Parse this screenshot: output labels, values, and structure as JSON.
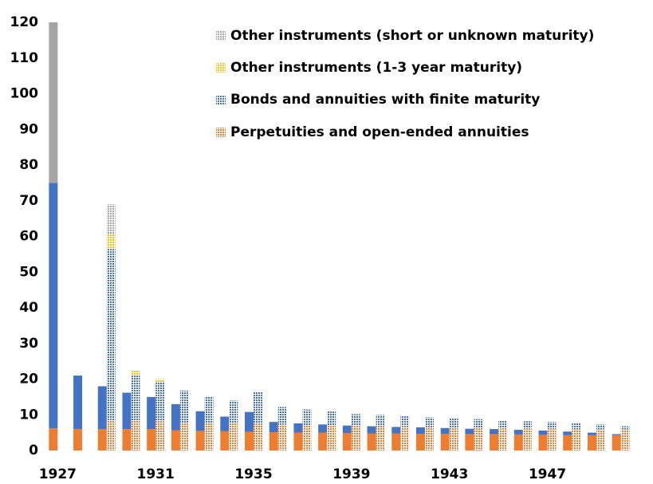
{
  "chart_data": {
    "type": "paired-stacked-bar",
    "categories": [
      "1927",
      null,
      null,
      null,
      "1931",
      null,
      null,
      null,
      "1935",
      null,
      null,
      null,
      "1939",
      null,
      null,
      null,
      "1943",
      null,
      null,
      null,
      "1947",
      null,
      null,
      null
    ],
    "series": [
      {
        "name": "Perpetuities and open-ended annuities",
        "color": "#ed7d31",
        "values": [
          6.2,
          6,
          6,
          6,
          6,
          5.7,
          5.5,
          5.4,
          5.2,
          5.1,
          5,
          5,
          4.9,
          4.8,
          4.8,
          4.7,
          4.7,
          4.6,
          4.6,
          4.5,
          4.4,
          4.3,
          4.3,
          4.3
        ],
        "hatched_values": [
          null,
          null,
          8.5,
          8.3,
          8.2,
          7.8,
          7.7,
          7.6,
          7.5,
          7.3,
          7.1,
          7,
          6.9,
          6.8,
          6.7,
          6.6,
          6.5,
          6.4,
          6.3,
          6.2,
          6.1,
          6,
          5.9,
          5.9
        ]
      },
      {
        "name": "Bonds and annuities with finite maturity",
        "color": "#4472c4",
        "values": [
          68.8,
          15,
          12,
          10.2,
          9,
          7.3,
          5.5,
          4.1,
          5.6,
          2.9,
          2.6,
          2.3,
          2.1,
          2,
          1.8,
          1.8,
          1.6,
          1.5,
          1.4,
          1.3,
          1.2,
          1,
          0.7,
          0.3
        ],
        "hatched_values": [
          null,
          null,
          48,
          12.7,
          11.1,
          9,
          7.5,
          6.4,
          8.9,
          4.9,
          4.4,
          4,
          3.3,
          3.2,
          2.9,
          2.7,
          2.5,
          2.4,
          2.2,
          2,
          1.9,
          1.7,
          1.4,
          0.9
        ]
      },
      {
        "name": "Other instruments (1-3 year maturity)",
        "color": "#ffc000",
        "values": [
          null,
          null,
          null,
          null,
          null,
          null,
          null,
          null,
          null,
          null,
          null,
          null,
          null,
          null,
          null,
          null,
          null,
          null,
          null,
          null,
          null,
          null,
          null,
          null
        ],
        "hatched_values": [
          null,
          null,
          4,
          1.3,
          0.7,
          null,
          null,
          null,
          null,
          null,
          null,
          null,
          null,
          null,
          null,
          null,
          null,
          null,
          null,
          null,
          null,
          null,
          null,
          null
        ]
      },
      {
        "name": "Other instruments (short or unknown maturity)",
        "color": "#a5a5a5",
        "values": [
          45,
          null,
          null,
          null,
          null,
          null,
          null,
          null,
          null,
          null,
          null,
          null,
          null,
          null,
          null,
          null,
          null,
          null,
          null,
          null,
          null,
          null,
          null,
          null
        ],
        "hatched_values": [
          null,
          null,
          8.5,
          null,
          null,
          null,
          null,
          null,
          null,
          null,
          null,
          null,
          null,
          null,
          null,
          null,
          null,
          null,
          null,
          null,
          null,
          null,
          null,
          null
        ]
      }
    ],
    "ylim": [
      0,
      120
    ],
    "yticks": [
      0,
      10,
      20,
      30,
      40,
      50,
      60,
      70,
      80,
      90,
      100,
      110,
      120
    ]
  }
}
